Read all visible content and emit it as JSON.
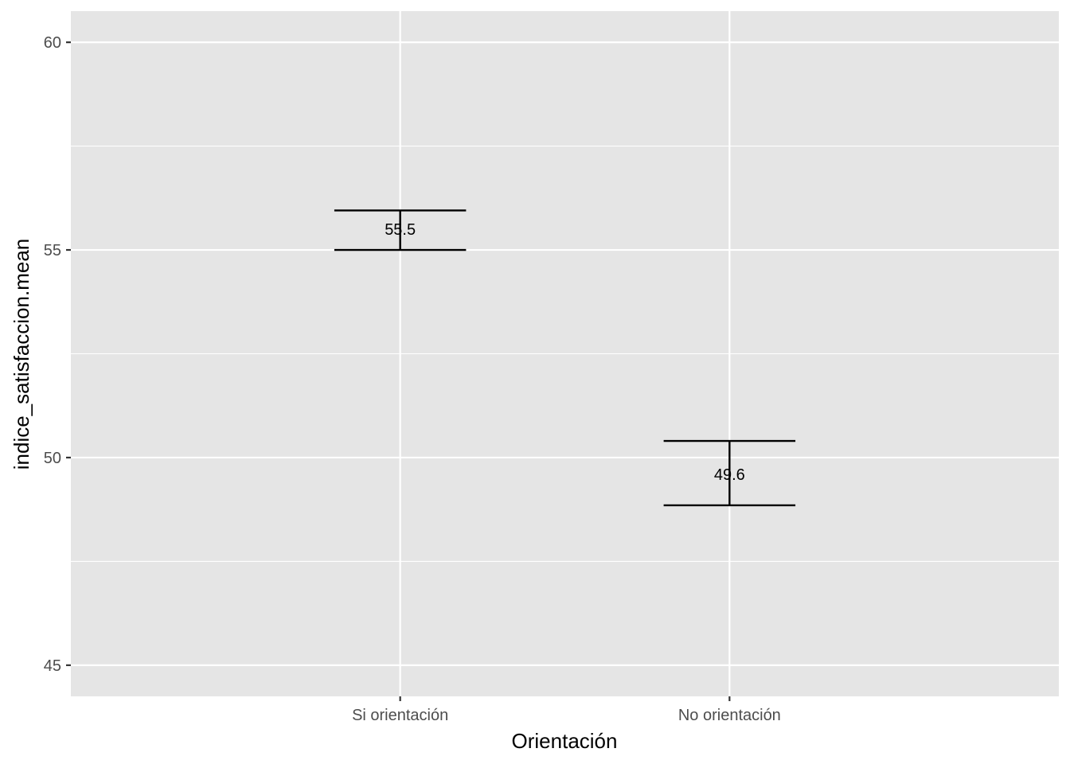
{
  "chart_data": {
    "type": "errorbar",
    "title": "",
    "xlabel": "Orientación",
    "ylabel": "indice_satisfaccion.mean",
    "categories": [
      "Si orientación",
      "No orientación"
    ],
    "values": [
      55.5,
      49.6
    ],
    "lower": [
      55.0,
      48.85
    ],
    "upper": [
      55.95,
      50.4
    ],
    "value_labels": [
      "55.5",
      "49.6"
    ],
    "ylim": [
      44.25,
      60.75
    ],
    "yticks": [
      45,
      50,
      55,
      60
    ],
    "ytick_labels": [
      "45",
      "50",
      "55",
      "60"
    ],
    "grid": true,
    "legend": "none",
    "colors": {
      "panel": "#e5e5e5",
      "grid": "#ffffff",
      "errorbar": "#000000",
      "tick_text": "#4d4d4d",
      "tick_mark": "#333333"
    }
  }
}
